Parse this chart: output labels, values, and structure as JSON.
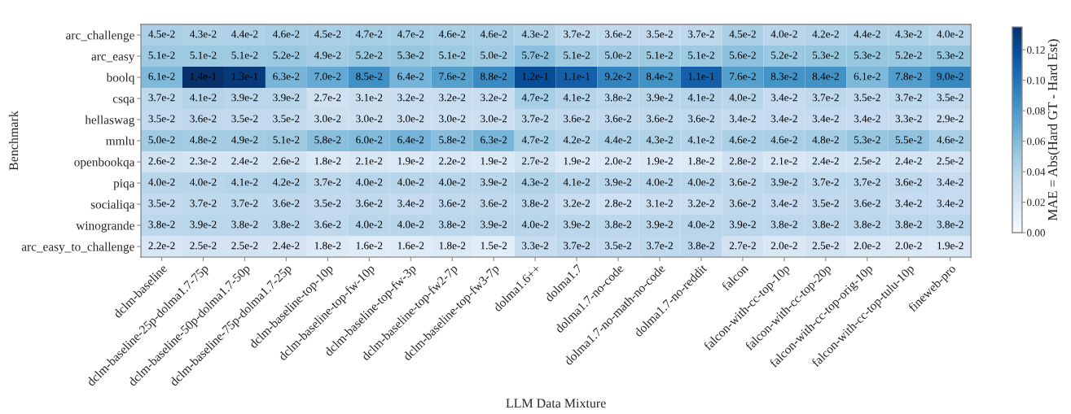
{
  "chart_data": {
    "type": "heatmap",
    "xlabel": "LLM Data Mixture",
    "ylabel": "Benchmark",
    "clabel": "MAE = Abs(Hard GT - Hard Est)",
    "categories": [
      "dclm-baseline",
      "dclm-baseline-25p-dolma1.7-75p",
      "dclm-baseline-50p-dolma1.7-50p",
      "dclm-baseline-75p-dolma1.7-25p",
      "dclm-baseline-top-10p",
      "dclm-baseline-top-fw-10p",
      "dclm-baseline-top-fw-3p",
      "dclm-baseline-top-fw2-7p",
      "dclm-baseline-top-fw3-7p",
      "dolma1.6++",
      "dolma1.7",
      "dolma1.7-no-code",
      "dolma1.7-no-math-no-code",
      "dolma1.7-no-reddit",
      "falcon",
      "falcon-with-cc-top-10p",
      "falcon-with-cc-top-20p",
      "falcon-with-cc-top-orig-10p",
      "falcon-with-cc-top-tulu-10p",
      "fineweb-pro"
    ],
    "y_categories": [
      "arc_challenge",
      "arc_easy",
      "boolq",
      "csqa",
      "hellaswag",
      "mmlu",
      "openbookqa",
      "piqa",
      "socialiqa",
      "winogrande",
      "arc_easy_to_challenge"
    ],
    "cells": [
      [
        0.045,
        0.043,
        0.044,
        0.046,
        0.045,
        0.047,
        0.047,
        0.046,
        0.046,
        0.043,
        0.037,
        0.036,
        0.035,
        0.037,
        0.045,
        0.04,
        0.042,
        0.044,
        0.043,
        0.04
      ],
      [
        0.051,
        0.051,
        0.051,
        0.052,
        0.049,
        0.052,
        0.053,
        0.051,
        0.05,
        0.057,
        0.051,
        0.05,
        0.051,
        0.051,
        0.056,
        0.052,
        0.053,
        0.053,
        0.052,
        0.053
      ],
      [
        0.061,
        0.135,
        0.13,
        0.063,
        0.07,
        0.085,
        0.064,
        0.076,
        0.088,
        0.12,
        0.11,
        0.092,
        0.084,
        0.11,
        0.076,
        0.083,
        0.084,
        0.061,
        0.078,
        0.09
      ],
      [
        0.037,
        0.041,
        0.039,
        0.039,
        0.027,
        0.031,
        0.032,
        0.032,
        0.032,
        0.047,
        0.041,
        0.038,
        0.039,
        0.041,
        0.04,
        0.034,
        0.037,
        0.035,
        0.037,
        0.035
      ],
      [
        0.035,
        0.036,
        0.035,
        0.035,
        0.03,
        0.03,
        0.03,
        0.03,
        0.03,
        0.037,
        0.036,
        0.036,
        0.036,
        0.036,
        0.034,
        0.034,
        0.034,
        0.034,
        0.033,
        0.029
      ],
      [
        0.05,
        0.048,
        0.049,
        0.051,
        0.058,
        0.06,
        0.064,
        0.058,
        0.063,
        0.047,
        0.042,
        0.044,
        0.043,
        0.041,
        0.046,
        0.046,
        0.048,
        0.053,
        0.055,
        0.046
      ],
      [
        0.026,
        0.023,
        0.024,
        0.026,
        0.018,
        0.021,
        0.019,
        0.022,
        0.019,
        0.027,
        0.019,
        0.02,
        0.019,
        0.018,
        0.028,
        0.021,
        0.024,
        0.025,
        0.024,
        0.025
      ],
      [
        0.04,
        0.04,
        0.041,
        0.042,
        0.037,
        0.04,
        0.04,
        0.04,
        0.039,
        0.043,
        0.041,
        0.039,
        0.04,
        0.04,
        0.036,
        0.039,
        0.037,
        0.037,
        0.036,
        0.034
      ],
      [
        0.035,
        0.037,
        0.037,
        0.036,
        0.035,
        0.036,
        0.034,
        0.036,
        0.036,
        0.038,
        0.032,
        0.028,
        0.031,
        0.032,
        0.036,
        0.034,
        0.035,
        0.036,
        0.034,
        0.034
      ],
      [
        0.038,
        0.039,
        0.038,
        0.038,
        0.036,
        0.04,
        0.04,
        0.038,
        0.039,
        0.04,
        0.039,
        0.038,
        0.039,
        0.04,
        0.039,
        0.038,
        0.038,
        0.038,
        0.038,
        0.038
      ],
      [
        0.022,
        0.025,
        0.025,
        0.024,
        0.018,
        0.016,
        0.016,
        0.018,
        0.015,
        0.033,
        0.037,
        0.035,
        0.037,
        0.038,
        0.027,
        0.02,
        0.025,
        0.02,
        0.02,
        0.019
      ]
    ],
    "cell_labels": [
      [
        "4.5e-2",
        "4.3e-2",
        "4.4e-2",
        "4.6e-2",
        "4.5e-2",
        "4.7e-2",
        "4.7e-2",
        "4.6e-2",
        "4.6e-2",
        "4.3e-2",
        "3.7e-2",
        "3.6e-2",
        "3.5e-2",
        "3.7e-2",
        "4.5e-2",
        "4.0e-2",
        "4.2e-2",
        "4.4e-2",
        "4.3e-2",
        "4.0e-2"
      ],
      [
        "5.1e-2",
        "5.1e-2",
        "5.1e-2",
        "5.2e-2",
        "4.9e-2",
        "5.2e-2",
        "5.3e-2",
        "5.1e-2",
        "5.0e-2",
        "5.7e-2",
        "5.1e-2",
        "5.0e-2",
        "5.1e-2",
        "5.1e-2",
        "5.6e-2",
        "5.2e-2",
        "5.3e-2",
        "5.3e-2",
        "5.2e-2",
        "5.3e-2"
      ],
      [
        "6.1e-2",
        "1.4e-1",
        "1.3e-1",
        "6.3e-2",
        "7.0e-2",
        "8.5e-2",
        "6.4e-2",
        "7.6e-2",
        "8.8e-2",
        "1.2e-1",
        "1.1e-1",
        "9.2e-2",
        "8.4e-2",
        "1.1e-1",
        "7.6e-2",
        "8.3e-2",
        "8.4e-2",
        "6.1e-2",
        "7.8e-2",
        "9.0e-2"
      ],
      [
        "3.7e-2",
        "4.1e-2",
        "3.9e-2",
        "3.9e-2",
        "2.7e-2",
        "3.1e-2",
        "3.2e-2",
        "3.2e-2",
        "3.2e-2",
        "4.7e-2",
        "4.1e-2",
        "3.8e-2",
        "3.9e-2",
        "4.1e-2",
        "4.0e-2",
        "3.4e-2",
        "3.7e-2",
        "3.5e-2",
        "3.7e-2",
        "3.5e-2"
      ],
      [
        "3.5e-2",
        "3.6e-2",
        "3.5e-2",
        "3.5e-2",
        "3.0e-2",
        "3.0e-2",
        "3.0e-2",
        "3.0e-2",
        "3.0e-2",
        "3.7e-2",
        "3.6e-2",
        "3.6e-2",
        "3.6e-2",
        "3.6e-2",
        "3.4e-2",
        "3.4e-2",
        "3.4e-2",
        "3.4e-2",
        "3.3e-2",
        "2.9e-2"
      ],
      [
        "5.0e-2",
        "4.8e-2",
        "4.9e-2",
        "5.1e-2",
        "5.8e-2",
        "6.0e-2",
        "6.4e-2",
        "5.8e-2",
        "6.3e-2",
        "4.7e-2",
        "4.2e-2",
        "4.4e-2",
        "4.3e-2",
        "4.1e-2",
        "4.6e-2",
        "4.6e-2",
        "4.8e-2",
        "5.3e-2",
        "5.5e-2",
        "4.6e-2"
      ],
      [
        "2.6e-2",
        "2.3e-2",
        "2.4e-2",
        "2.6e-2",
        "1.8e-2",
        "2.1e-2",
        "1.9e-2",
        "2.2e-2",
        "1.9e-2",
        "2.7e-2",
        "1.9e-2",
        "2.0e-2",
        "1.9e-2",
        "1.8e-2",
        "2.8e-2",
        "2.1e-2",
        "2.4e-2",
        "2.5e-2",
        "2.4e-2",
        "2.5e-2"
      ],
      [
        "4.0e-2",
        "4.0e-2",
        "4.1e-2",
        "4.2e-2",
        "3.7e-2",
        "4.0e-2",
        "4.0e-2",
        "4.0e-2",
        "3.9e-2",
        "4.3e-2",
        "4.1e-2",
        "3.9e-2",
        "4.0e-2",
        "4.0e-2",
        "3.6e-2",
        "3.9e-2",
        "3.7e-2",
        "3.7e-2",
        "3.6e-2",
        "3.4e-2"
      ],
      [
        "3.5e-2",
        "3.7e-2",
        "3.7e-2",
        "3.6e-2",
        "3.5e-2",
        "3.6e-2",
        "3.4e-2",
        "3.6e-2",
        "3.6e-2",
        "3.8e-2",
        "3.2e-2",
        "2.8e-2",
        "3.1e-2",
        "3.2e-2",
        "3.6e-2",
        "3.4e-2",
        "3.5e-2",
        "3.6e-2",
        "3.4e-2",
        "3.4e-2"
      ],
      [
        "3.8e-2",
        "3.9e-2",
        "3.8e-2",
        "3.8e-2",
        "3.6e-2",
        "4.0e-2",
        "4.0e-2",
        "3.8e-2",
        "3.9e-2",
        "4.0e-2",
        "3.9e-2",
        "3.8e-2",
        "3.9e-2",
        "4.0e-2",
        "3.9e-2",
        "3.8e-2",
        "3.8e-2",
        "3.8e-2",
        "3.8e-2",
        "3.8e-2"
      ],
      [
        "2.2e-2",
        "2.5e-2",
        "2.5e-2",
        "2.4e-2",
        "1.8e-2",
        "1.6e-2",
        "1.6e-2",
        "1.8e-2",
        "1.5e-2",
        "3.3e-2",
        "3.7e-2",
        "3.5e-2",
        "3.7e-2",
        "3.8e-2",
        "2.7e-2",
        "2.0e-2",
        "2.5e-2",
        "2.0e-2",
        "2.0e-2",
        "1.9e-2"
      ]
    ],
    "clim": [
      0,
      0.135
    ],
    "cticks": [
      {
        "value": 0,
        "label": "0.00"
      },
      {
        "value": 0.02,
        "label": "0.02"
      },
      {
        "value": 0.04,
        "label": "0.04"
      },
      {
        "value": 0.06,
        "label": "0.06"
      },
      {
        "value": 0.08,
        "label": "0.08"
      },
      {
        "value": 0.1,
        "label": "0.10"
      },
      {
        "value": 0.12,
        "label": "0.12"
      }
    ]
  }
}
